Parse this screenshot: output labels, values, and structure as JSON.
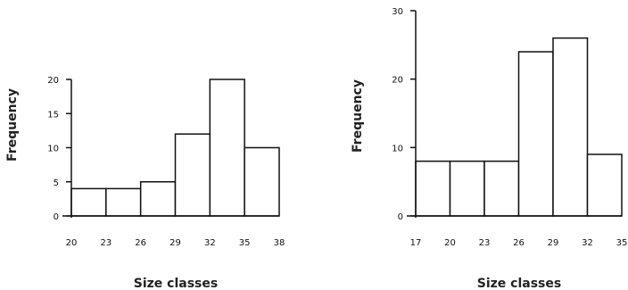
{
  "chart_data": [
    {
      "type": "bar",
      "xlabel": "Size classes",
      "ylabel": "Frequency",
      "x_ticks": [
        "20",
        "23",
        "26",
        "29",
        "32",
        "35",
        "38"
      ],
      "y_ticks": [
        "0",
        "5",
        "10",
        "15",
        "20"
      ],
      "bins": [
        [
          20,
          23
        ],
        [
          23,
          26
        ],
        [
          26,
          29
        ],
        [
          29,
          32
        ],
        [
          32,
          35
        ],
        [
          35,
          38
        ]
      ],
      "values": [
        4,
        4,
        5,
        12,
        20,
        10
      ],
      "xlim": [
        20,
        38
      ],
      "ylim": [
        0,
        20
      ],
      "grid": false
    },
    {
      "type": "bar",
      "xlabel": "Size classes",
      "ylabel": "Frequency",
      "x_ticks": [
        "17",
        "20",
        "23",
        "26",
        "29",
        "32",
        "35"
      ],
      "y_ticks": [
        "0",
        "10",
        "20",
        "30"
      ],
      "bins": [
        [
          17,
          20
        ],
        [
          20,
          23
        ],
        [
          23,
          26
        ],
        [
          26,
          29
        ],
        [
          29,
          32
        ],
        [
          32,
          35
        ]
      ],
      "values": [
        8,
        8,
        8,
        24,
        26,
        9
      ],
      "xlim": [
        17,
        35
      ],
      "ylim": [
        0,
        30
      ],
      "grid": false
    }
  ]
}
